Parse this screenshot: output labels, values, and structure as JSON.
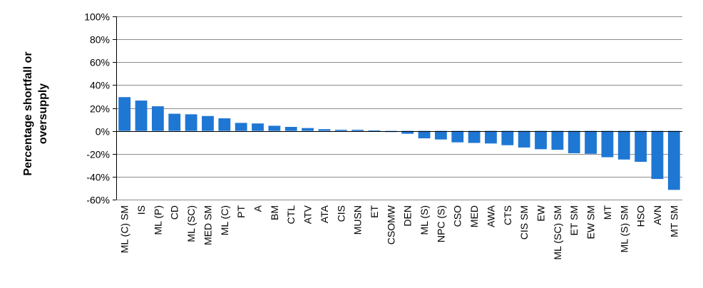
{
  "chart_data": {
    "type": "bar",
    "title": "",
    "xlabel": "",
    "ylabel": "Percentage shortfall or oversupply",
    "ylabel_lines": [
      "Percentage shortfall or",
      "oversupply"
    ],
    "ylim": [
      -60,
      100
    ],
    "yticks": [
      -60,
      -40,
      -20,
      0,
      20,
      40,
      60,
      80,
      100
    ],
    "ytick_labels": [
      "-60%",
      "-40%",
      "-20%",
      "0%",
      "20%",
      "40%",
      "60%",
      "80%",
      "100%"
    ],
    "grid": true,
    "bar_color": "#1f77d4",
    "categories": [
      "ML (C) SM",
      "IS",
      "ML (P)",
      "CD",
      "ML (SC)",
      "MED SM",
      "ML (C)",
      "PT",
      "A",
      "BM",
      "CTL",
      "ATV",
      "ATA",
      "CIS",
      "MUSN",
      "ET",
      "CSOMW",
      "DEN",
      "ML (S)",
      "NPC (S)",
      "CSO",
      "MED",
      "AWA",
      "CTS",
      "CIS SM",
      "EW",
      "ML (SC) SM",
      "ET SM",
      "EW SM",
      "MT",
      "ML (S) SM",
      "HSO",
      "AVN",
      "MT SM"
    ],
    "values": [
      29.5,
      26.5,
      21.5,
      15,
      14.5,
      13,
      11,
      7,
      6.5,
      4.5,
      3.5,
      2.5,
      1.5,
      1,
      1,
      0.5,
      -1,
      -2.5,
      -6.5,
      -7.5,
      -10,
      -10.5,
      -11,
      -12.5,
      -14.5,
      -16,
      -16.5,
      -19.5,
      -20,
      -23,
      -25,
      -27,
      -42,
      -51.5
    ]
  }
}
